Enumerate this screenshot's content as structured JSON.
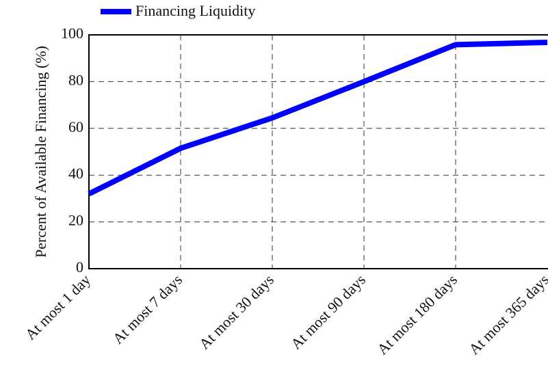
{
  "chart_data": {
    "type": "line",
    "categories": [
      "At most 1 day",
      "At most 7 days",
      "At most 30 days",
      "At most 90 days",
      "At most 180 days",
      "At most 365 days"
    ],
    "y_label": "Percent of Available Financing (%)",
    "series": [
      {
        "name": "Financing Liquidity",
        "color": "#0000ff",
        "values": [
          32,
          51.5,
          64.5,
          80,
          95.8,
          96.8
        ]
      }
    ],
    "ylim": [
      0,
      100
    ],
    "yticks": [
      0,
      20,
      40,
      60,
      80,
      100
    ],
    "grid": true
  }
}
